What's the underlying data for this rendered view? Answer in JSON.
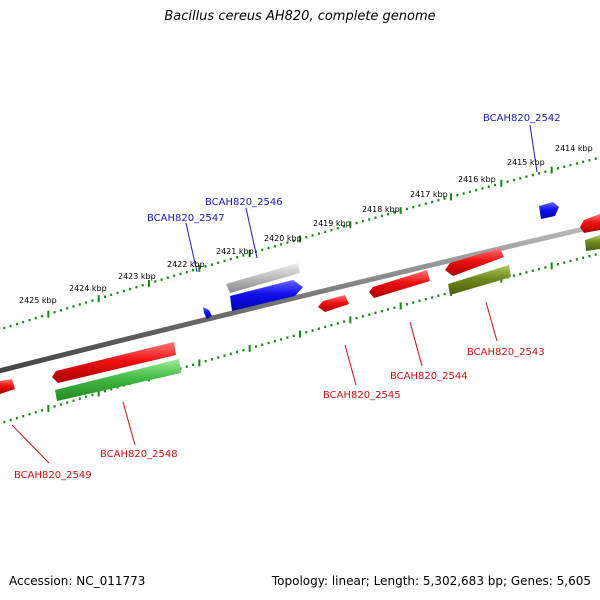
{
  "title": "Bacillus cereus AH820, complete genome",
  "footer": {
    "accession": "Accession: NC_011773",
    "topology": "Topology: linear; Length: 5,302,683 bp; Genes: 5,605"
  },
  "colors": {
    "backbone": "#7a7a7a",
    "ruler": "#0e8a0e",
    "label_forward": "#1a1ab8",
    "label_reverse": "#cc1111",
    "red_gene": "#ee1111",
    "green_gene": "#44bb44",
    "olive_gene": "#6e8a1e",
    "blue_gene": "#1111ee",
    "grey_gene": "#bbbbbb"
  },
  "scale_labels": [
    {
      "kbp": 2414,
      "text": "2414 kbp"
    },
    {
      "kbp": 2415,
      "text": "2415 kbp"
    },
    {
      "kbp": 2416,
      "text": "2416 kbp"
    },
    {
      "kbp": 2417,
      "text": "2417 kbp"
    },
    {
      "kbp": 2418,
      "text": "2418 kbp"
    },
    {
      "kbp": 2419,
      "text": "2419 kbp"
    },
    {
      "kbp": 2420,
      "text": "2420 kbp"
    },
    {
      "kbp": 2421,
      "text": "2421 kbp"
    },
    {
      "kbp": 2422,
      "text": "2422 kbp"
    },
    {
      "kbp": 2423,
      "text": "2423 kbp"
    },
    {
      "kbp": 2424,
      "text": "2424 kbp"
    },
    {
      "kbp": 2425,
      "text": "2425 kbp"
    }
  ],
  "gene_labels": [
    {
      "name": "BCAH820_2542",
      "strand": "forward"
    },
    {
      "name": "BCAH820_2546",
      "strand": "forward"
    },
    {
      "name": "BCAH820_2547",
      "strand": "forward"
    },
    {
      "name": "BCAH820_2543",
      "strand": "reverse"
    },
    {
      "name": "BCAH820_2544",
      "strand": "reverse"
    },
    {
      "name": "BCAH820_2545",
      "strand": "reverse"
    },
    {
      "name": "BCAH820_2548",
      "strand": "reverse"
    },
    {
      "name": "BCAH820_2549",
      "strand": "reverse"
    }
  ]
}
